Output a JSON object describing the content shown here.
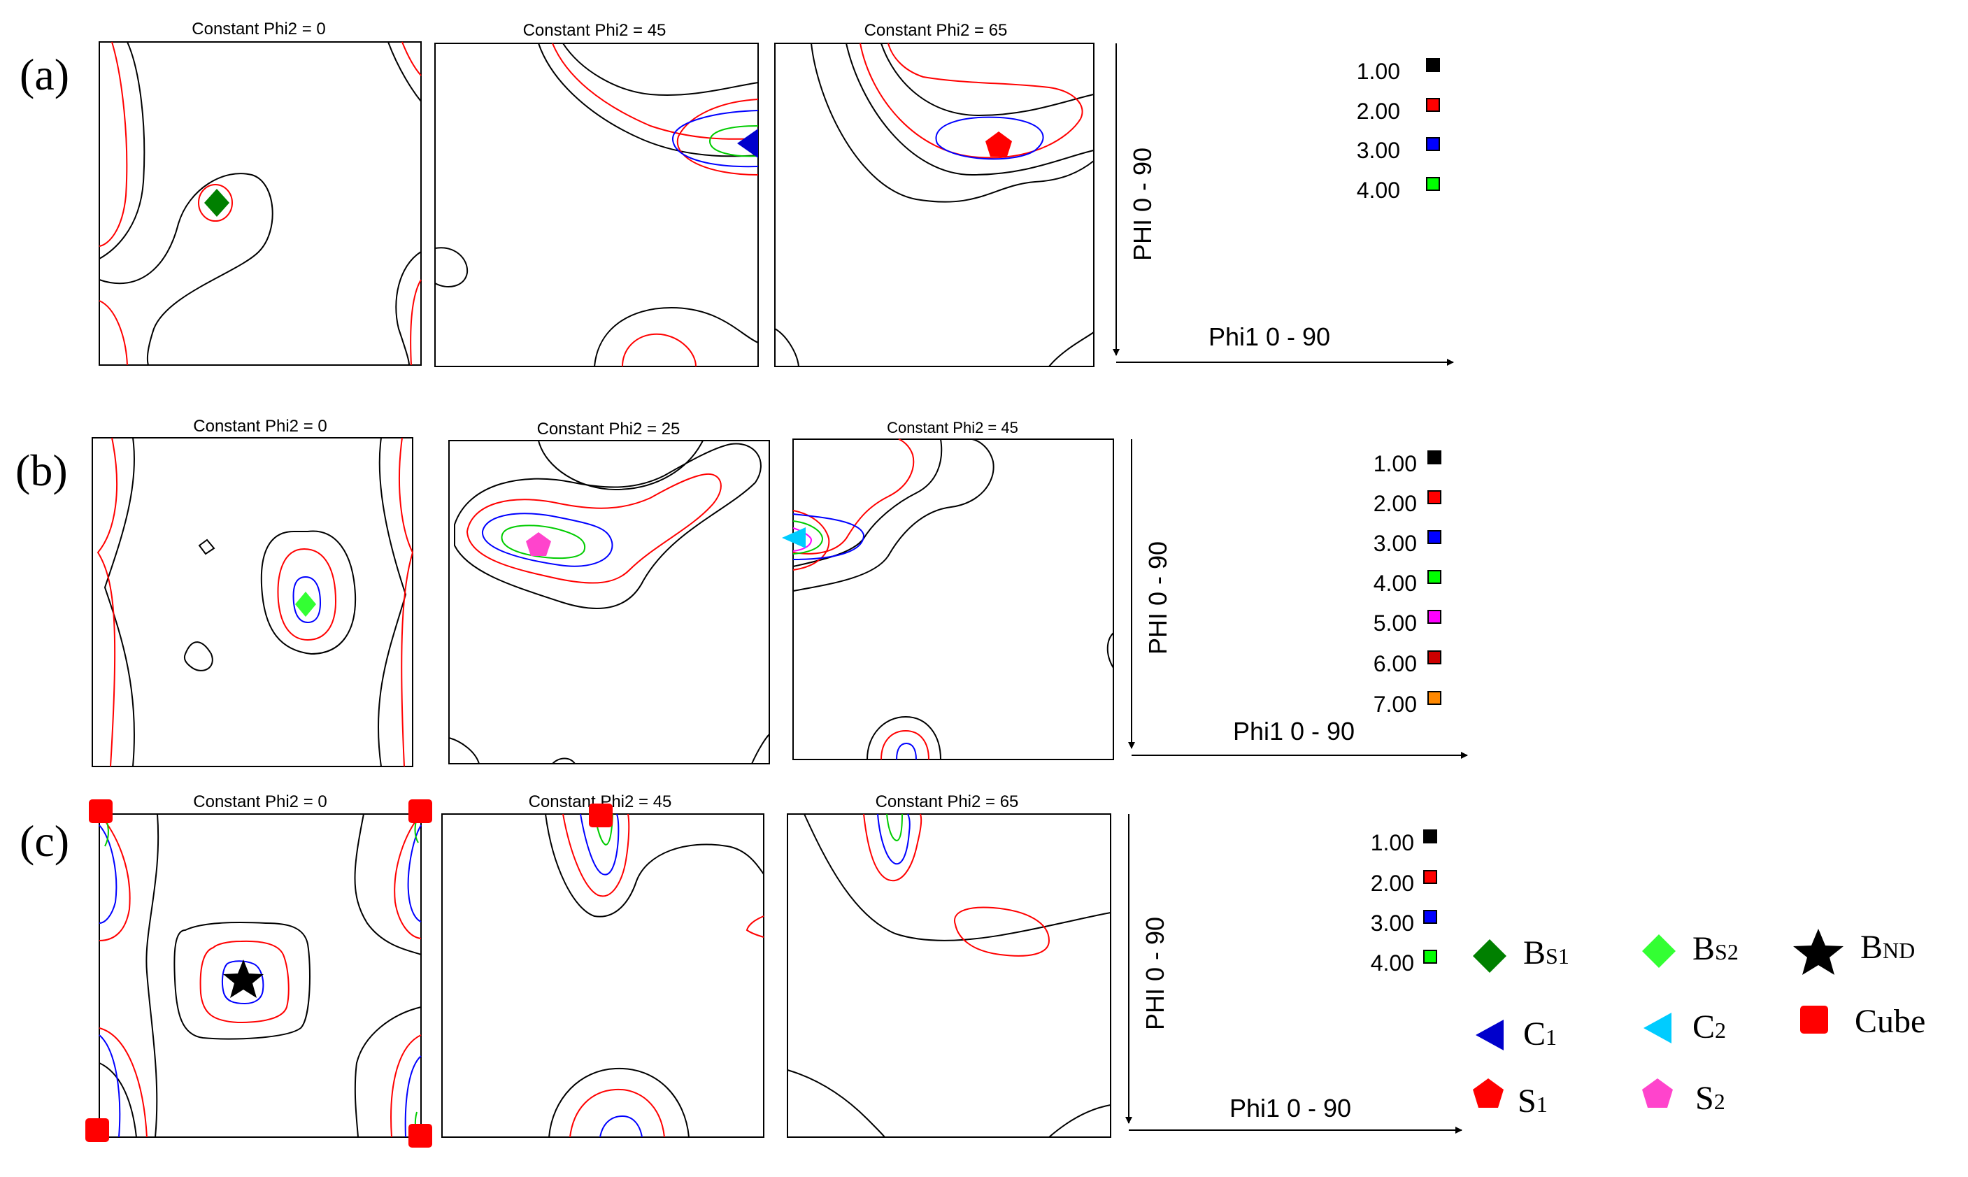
{
  "panels": [
    {
      "label": "(a)",
      "sections": [
        "Constant Phi2 = 0",
        "Constant Phi2 = 45",
        "Constant Phi2 = 65"
      ],
      "axis_y": "PHI  0 - 90",
      "axis_x": "Phi1  0 - 90",
      "levels": [
        {
          "value": "1.00",
          "color": "#000000"
        },
        {
          "value": "2.00",
          "color": "#ff0000"
        },
        {
          "value": "3.00",
          "color": "#0000ff"
        },
        {
          "value": "4.00",
          "color": "#00ff00"
        }
      ]
    },
    {
      "label": "(b)",
      "sections": [
        "Constant Phi2 = 0",
        "Constant Phi2 = 25",
        "Constant Phi2 = 45"
      ],
      "axis_y": "PHI  0 - 90",
      "axis_x": "Phi1  0 - 90",
      "levels": [
        {
          "value": "1.00",
          "color": "#000000"
        },
        {
          "value": "2.00",
          "color": "#ff0000"
        },
        {
          "value": "3.00",
          "color": "#0000ff"
        },
        {
          "value": "4.00",
          "color": "#00ff00"
        },
        {
          "value": "5.00",
          "color": "#ff00ff"
        },
        {
          "value": "6.00",
          "color": "#cc0000"
        },
        {
          "value": "7.00",
          "color": "#ff8800"
        }
      ]
    },
    {
      "label": "(c)",
      "sections": [
        "Constant Phi2 = 0",
        "Constant Phi2 = 45",
        "Constant Phi2 = 65"
      ],
      "axis_y": "PHI  0 - 90",
      "axis_x": "Phi1  0 - 90",
      "levels": [
        {
          "value": "1.00",
          "color": "#000000"
        },
        {
          "value": "2.00",
          "color": "#ff0000"
        },
        {
          "value": "3.00",
          "color": "#0000ff"
        },
        {
          "value": "4.00",
          "color": "#00ff00"
        }
      ]
    }
  ],
  "orientation_legend": [
    {
      "main": "B",
      "sub": "S1",
      "color": "#008000",
      "symbol": "diamond"
    },
    {
      "main": "B",
      "sub": "S2",
      "color": "#33ff33",
      "symbol": "diamond"
    },
    {
      "main": "B",
      "sub": "ND",
      "color": "#000000",
      "symbol": "star"
    },
    {
      "main": "C",
      "sub": "1",
      "color": "#0000cc",
      "symbol": "triangle-left"
    },
    {
      "main": "C",
      "sub": "2",
      "color": "#00ccff",
      "symbol": "triangle-left"
    },
    {
      "main": "Cube",
      "sub": "",
      "color": "#ff0000",
      "symbol": "square"
    },
    {
      "main": "S",
      "sub": "1",
      "color": "#ff0000",
      "symbol": "pentagon"
    },
    {
      "main": "S",
      "sub": "2",
      "color": "#ff44cc",
      "symbol": "pentagon"
    }
  ]
}
